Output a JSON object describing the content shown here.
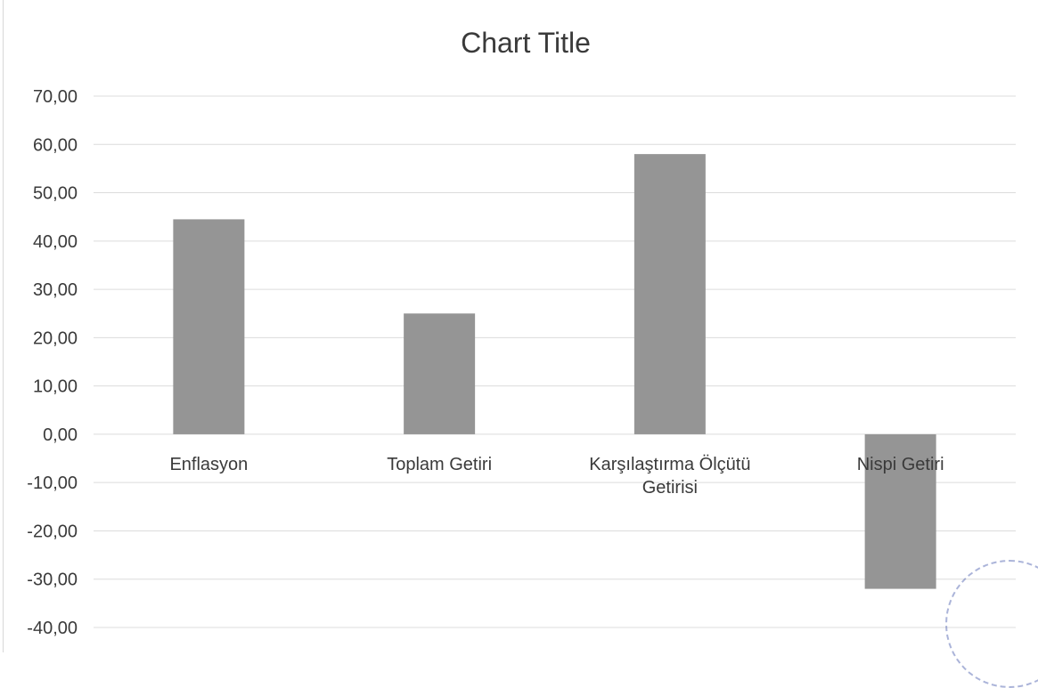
{
  "chart_data": {
    "type": "bar",
    "title": "Chart Title",
    "xlabel": "",
    "ylabel": "",
    "categories": [
      [
        "Enflasyon"
      ],
      [
        "Toplam Getiri"
      ],
      [
        "Karşılaştırma Ölçütü",
        "Getirisi"
      ],
      [
        "Nispi Getiri"
      ]
    ],
    "values": [
      44.5,
      25.0,
      58.0,
      -32.0
    ],
    "ylim": [
      -40,
      70
    ],
    "yticks": [
      "70,00",
      "60,00",
      "50,00",
      "40,00",
      "30,00",
      "20,00",
      "10,00",
      "0,00",
      "-10,00",
      "-20,00",
      "-30,00",
      "-40,00"
    ],
    "grid": true,
    "legend": "none",
    "colors": {
      "bar": "#959595",
      "grid": "#dcdcdc",
      "text": "#3a3a3a"
    }
  }
}
